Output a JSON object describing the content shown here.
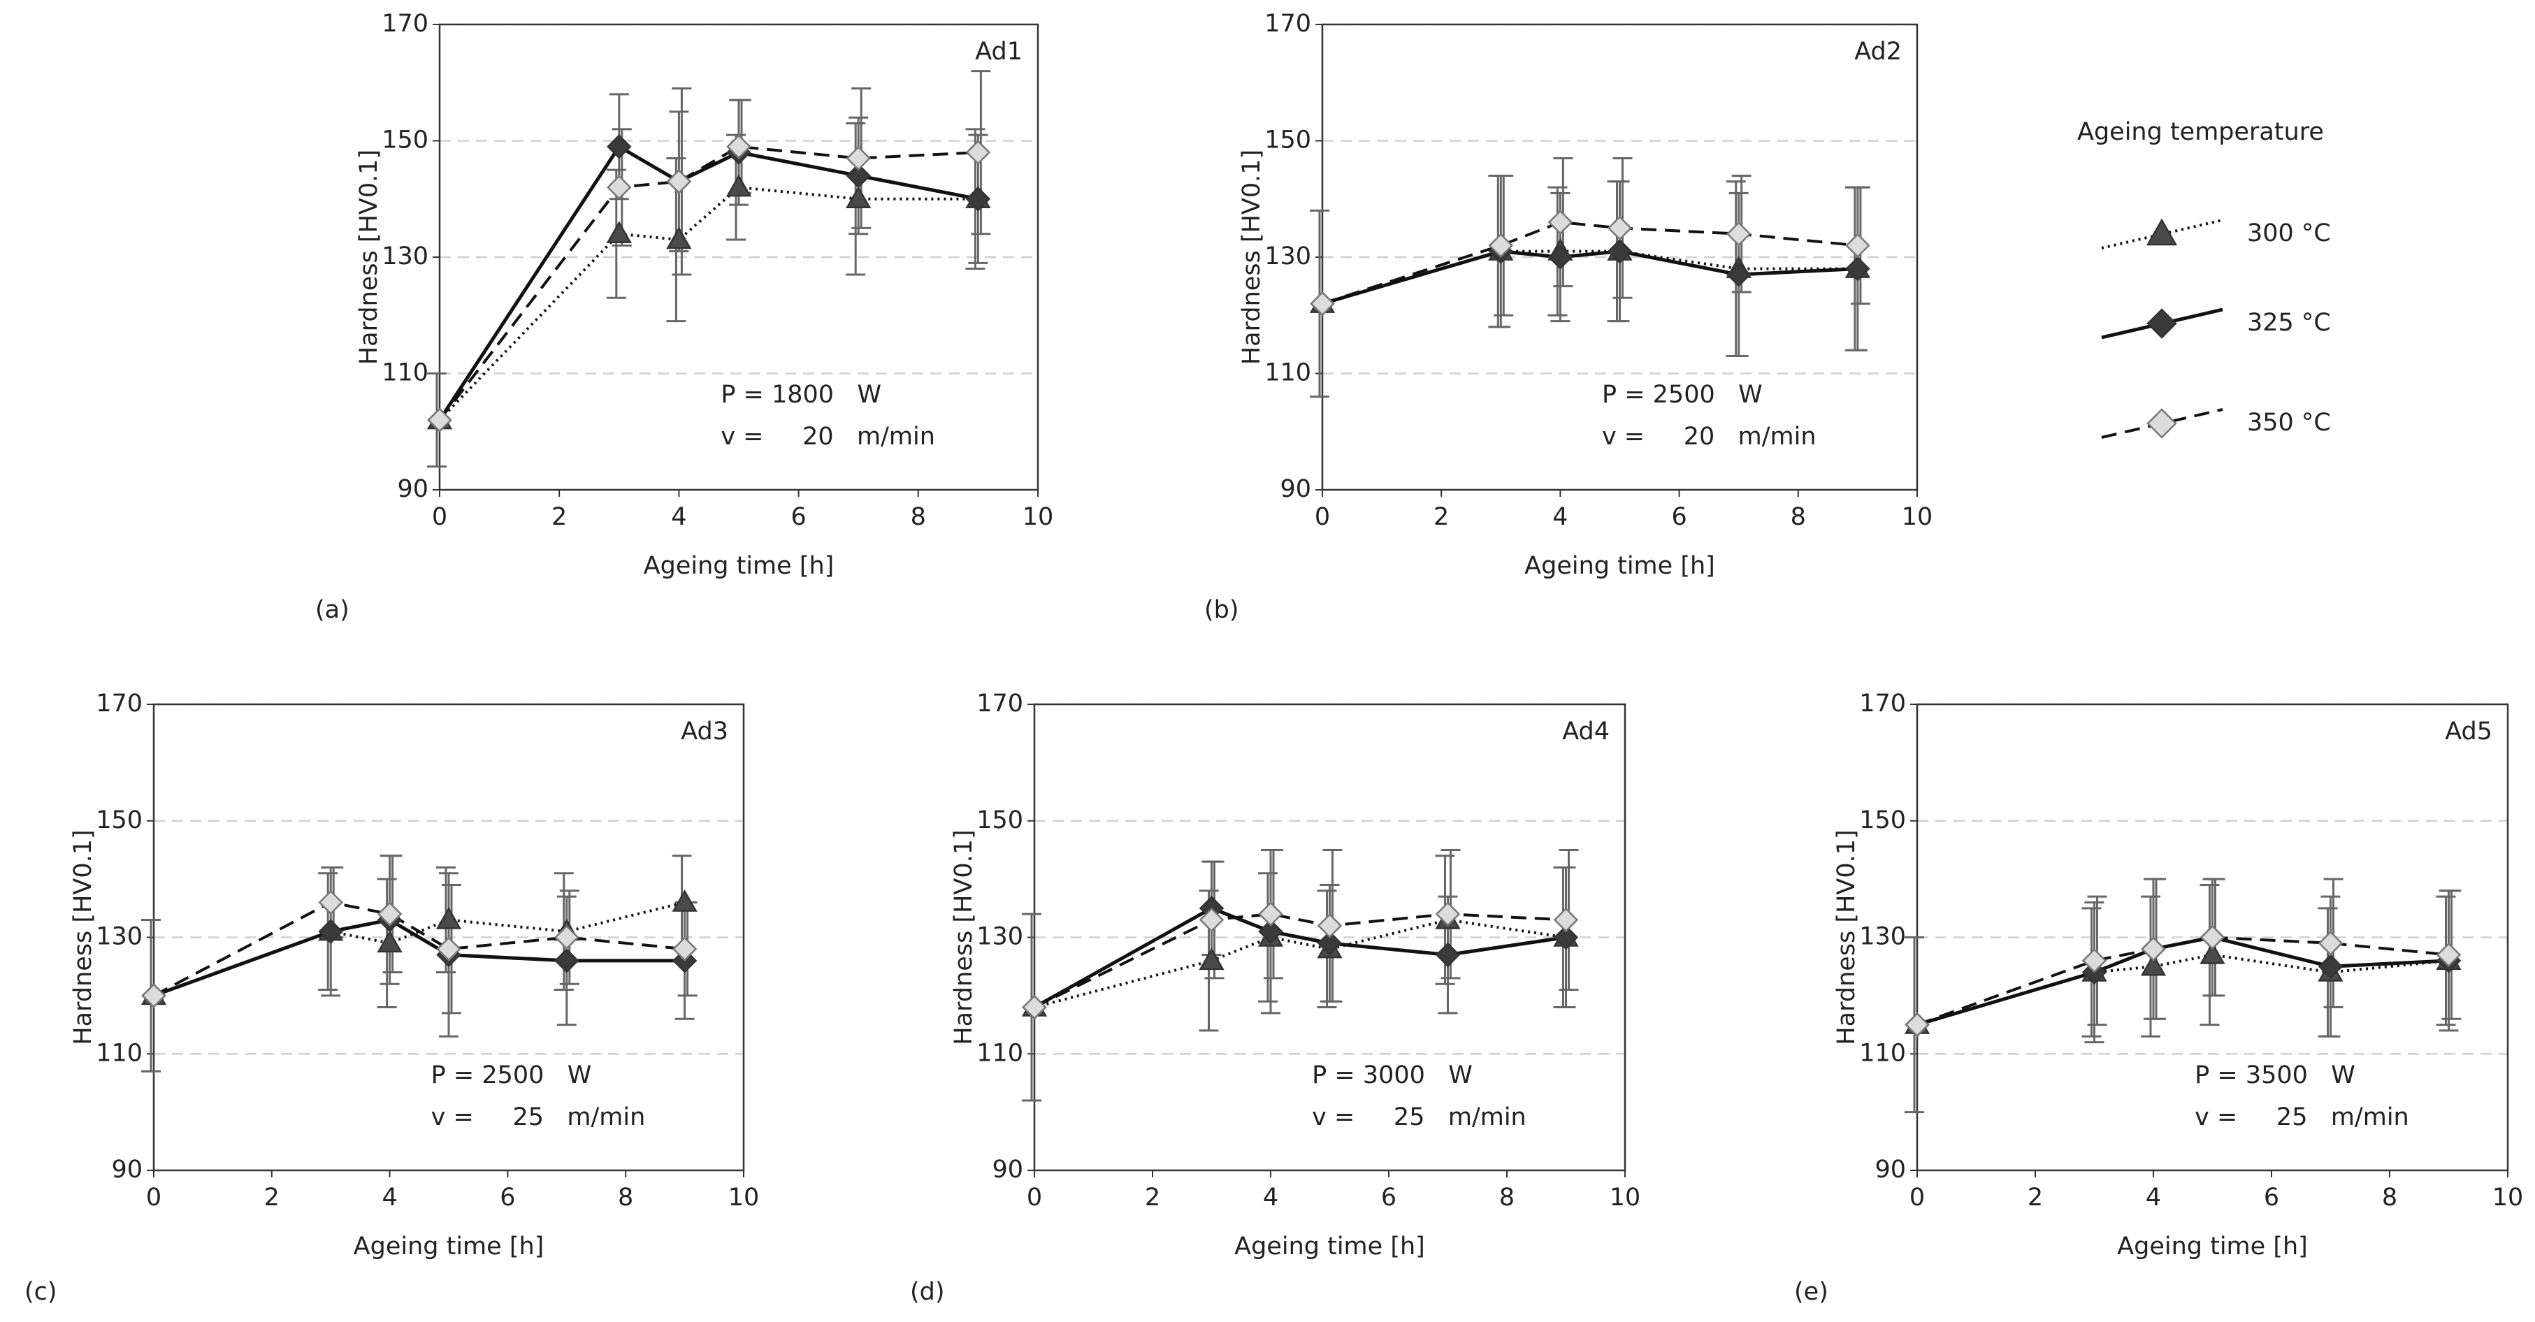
{
  "legend": {
    "title": "Ageing temperature",
    "entries": [
      {
        "name": "300 °C",
        "marker": "triangle",
        "dash": "dotted",
        "color": "#4a4a4a"
      },
      {
        "name": "325 °C",
        "marker": "diamond",
        "dash": "solid",
        "color": "#3a3a3a"
      },
      {
        "name": "350 °C",
        "marker": "open-diamond",
        "dash": "dashed",
        "color": "#dcdcdc"
      }
    ]
  },
  "chart_data": [
    {
      "type": "line",
      "panel": "(a)",
      "title": "Ad1",
      "annotations": [
        "P = 1800   W",
        "v =     20   m/min"
      ],
      "x_label": "Ageing time [h]",
      "y_label": "Hardness [HV0.1]",
      "xlim": [
        0,
        10
      ],
      "xticks": [
        0,
        2,
        4,
        6,
        8,
        10
      ],
      "ylim": [
        90,
        170
      ],
      "yticks": [
        90,
        110,
        130,
        150,
        170
      ],
      "grid": true,
      "x": [
        0,
        3,
        4,
        5,
        7,
        9
      ],
      "series": [
        {
          "values": [
            102,
            134,
            133,
            142,
            140,
            140
          ],
          "errors": [
            8,
            11,
            14,
            9,
            13,
            12
          ]
        },
        {
          "values": [
            102,
            149,
            143,
            148,
            144,
            140
          ],
          "errors": [
            0,
            9,
            12,
            9,
            10,
            11
          ]
        },
        {
          "values": [
            102,
            142,
            143,
            149,
            147,
            148
          ],
          "errors": [
            0,
            10,
            16,
            8,
            12,
            14
          ]
        }
      ]
    },
    {
      "type": "line",
      "panel": "(b)",
      "title": "Ad2",
      "annotations": [
        "P = 2500   W",
        "v =     20   m/min"
      ],
      "x_label": "Ageing time [h]",
      "y_label": "Hardness [HV0.1]",
      "xlim": [
        0,
        10
      ],
      "xticks": [
        0,
        2,
        4,
        6,
        8,
        10
      ],
      "ylim": [
        90,
        170
      ],
      "yticks": [
        90,
        110,
        130,
        150,
        170
      ],
      "grid": true,
      "x": [
        0,
        3,
        4,
        5,
        7,
        9
      ],
      "series": [
        {
          "values": [
            122,
            131,
            131,
            131,
            128,
            128
          ],
          "errors": [
            16,
            13,
            11,
            12,
            15,
            14
          ]
        },
        {
          "values": [
            122,
            131,
            130,
            131,
            127,
            128
          ],
          "errors": [
            0,
            13,
            11,
            12,
            14,
            14
          ]
        },
        {
          "values": [
            122,
            132,
            136,
            135,
            134,
            132
          ],
          "errors": [
            0,
            12,
            11,
            12,
            10,
            10
          ]
        }
      ]
    },
    {
      "type": "line",
      "panel": "(c)",
      "title": "Ad3",
      "annotations": [
        "P = 2500   W",
        "v =     25   m/min"
      ],
      "x_label": "Ageing time [h]",
      "y_label": "Hardness [HV0.1]",
      "xlim": [
        0,
        10
      ],
      "xticks": [
        0,
        2,
        4,
        6,
        8,
        10
      ],
      "ylim": [
        90,
        170
      ],
      "yticks": [
        90,
        110,
        130,
        150,
        170
      ],
      "grid": true,
      "x": [
        0,
        3,
        4,
        5,
        7,
        9
      ],
      "series": [
        {
          "values": [
            120,
            131,
            129,
            133,
            131,
            136
          ],
          "errors": [
            13,
            10,
            11,
            9,
            10,
            8
          ]
        },
        {
          "values": [
            120,
            131,
            133,
            127,
            126,
            126
          ],
          "errors": [
            0,
            11,
            11,
            14,
            11,
            10
          ]
        },
        {
          "values": [
            120,
            136,
            134,
            128,
            130,
            128
          ],
          "errors": [
            0,
            6,
            10,
            11,
            8,
            8
          ]
        }
      ]
    },
    {
      "type": "line",
      "panel": "(d)",
      "title": "Ad4",
      "annotations": [
        "P = 3000   W",
        "v =     25   m/min"
      ],
      "x_label": "Ageing time [h]",
      "y_label": "Hardness [HV0.1]",
      "xlim": [
        0,
        10
      ],
      "xticks": [
        0,
        2,
        4,
        6,
        8,
        10
      ],
      "ylim": [
        90,
        170
      ],
      "yticks": [
        90,
        110,
        130,
        150,
        170
      ],
      "grid": true,
      "x": [
        0,
        3,
        4,
        5,
        7,
        9
      ],
      "series": [
        {
          "values": [
            118,
            126,
            130,
            128,
            133,
            130
          ],
          "errors": [
            16,
            12,
            11,
            10,
            11,
            12
          ]
        },
        {
          "values": [
            118,
            135,
            131,
            129,
            127,
            130
          ],
          "errors": [
            0,
            8,
            14,
            10,
            10,
            12
          ]
        },
        {
          "values": [
            118,
            133,
            134,
            132,
            134,
            133
          ],
          "errors": [
            0,
            10,
            11,
            13,
            11,
            12
          ]
        }
      ]
    },
    {
      "type": "line",
      "panel": "(e)",
      "title": "Ad5",
      "annotations": [
        "P = 3500   W",
        "v =     25   m/min"
      ],
      "x_label": "Ageing time [h]",
      "y_label": "Hardness [HV0.1]",
      "xlim": [
        0,
        10
      ],
      "xticks": [
        0,
        2,
        4,
        6,
        8,
        10
      ],
      "ylim": [
        90,
        170
      ],
      "yticks": [
        90,
        110,
        130,
        150,
        170
      ],
      "grid": true,
      "x": [
        0,
        3,
        4,
        5,
        7,
        9
      ],
      "series": [
        {
          "values": [
            115,
            124,
            125,
            127,
            124,
            126
          ],
          "errors": [
            15,
            11,
            12,
            12,
            11,
            11
          ]
        },
        {
          "values": [
            115,
            124,
            128,
            130,
            125,
            126
          ],
          "errors": [
            0,
            12,
            12,
            10,
            12,
            12
          ]
        },
        {
          "values": [
            115,
            126,
            128,
            130,
            129,
            127
          ],
          "errors": [
            0,
            11,
            12,
            10,
            11,
            11
          ]
        }
      ]
    }
  ]
}
